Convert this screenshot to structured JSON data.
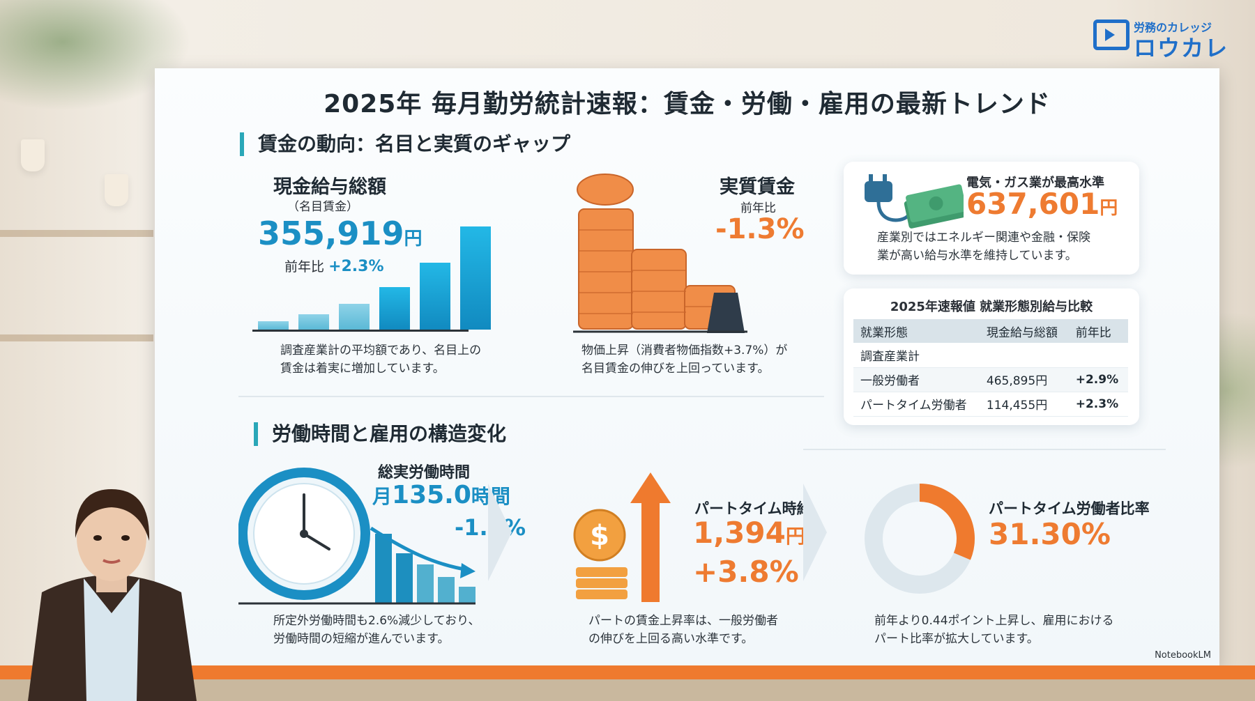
{
  "logo": {
    "subtitle": "労務のカレッジ",
    "name": "ロウカレ"
  },
  "slide": {
    "title": "2025年 毎月勤労統計速報：賃金・労働・雇用の最新トレンド",
    "wages_section": {
      "title": "賃金の動向：名目と実質のギャップ",
      "cash_total": {
        "heading": "現金給与総額",
        "subheading": "（名目賃金）",
        "value": "355,919",
        "unit": "円",
        "yoy_label": "前年比",
        "yoy_value": "+2.3%",
        "bars": [
          0.08,
          0.15,
          0.25,
          0.41,
          0.65,
          1.0
        ],
        "note_line1": "調査産業計の平均額であり、名目上の",
        "note_line2": "賃金は着実に増加しています。"
      },
      "real_wage": {
        "heading": "実質賃金",
        "yoy_label": "前年比",
        "value": "-1.3%",
        "note_line1": "物価上昇（消費者物価指数+3.7%）が",
        "note_line2": "名目賃金の伸びを上回っています。"
      },
      "highlight": {
        "title": "電気・ガス業が最高水準",
        "value": "637,601",
        "unit": "円",
        "note_line1": "産業別ではエネルギー関連や金融・保険",
        "note_line2": "業が高い給与水準を維持しています。"
      },
      "table": {
        "title": "2025年速報値 就業形態別給与比較",
        "headers": [
          "就業形態",
          "現金給与総額",
          "前年比"
        ],
        "rows": [
          [
            "調査産業計",
            "",
            ""
          ],
          [
            "一般労働者",
            "465,895円",
            "+2.9%"
          ],
          [
            "パートタイム労働者",
            "114,455円",
            "+2.3%"
          ]
        ]
      }
    },
    "labor_section": {
      "title": "労働時間と雇用の構造変化",
      "hours": {
        "heading": "総実労働時間",
        "prefix": "月",
        "value": "135.0",
        "unit": "時間",
        "change": "-1.4%",
        "note_line1": "所定外労働時間も2.6%減少しており、",
        "note_line2": "労働時間の短縮が進んでいます。"
      },
      "hourly": {
        "heading": "パートタイム時給",
        "value": "1,394",
        "unit": "円",
        "change": "+3.8%",
        "note_line1": "パートの賃金上昇率は、一般労働者",
        "note_line2": "の伸びを上回る高い水準です。"
      },
      "ratio": {
        "heading": "パートタイム労働者比率",
        "value": "31.30%",
        "fraction": 0.313,
        "note_line1": "前年より0.44ポイント上昇し、雇用における",
        "note_line2": "パート比率が拡大しています。"
      }
    },
    "watermark": "NotebookLM"
  },
  "colors": {
    "accent_blue": "#1b8fc4",
    "accent_orange": "#ee7b31",
    "bar_orange": "#ef7a2e"
  }
}
